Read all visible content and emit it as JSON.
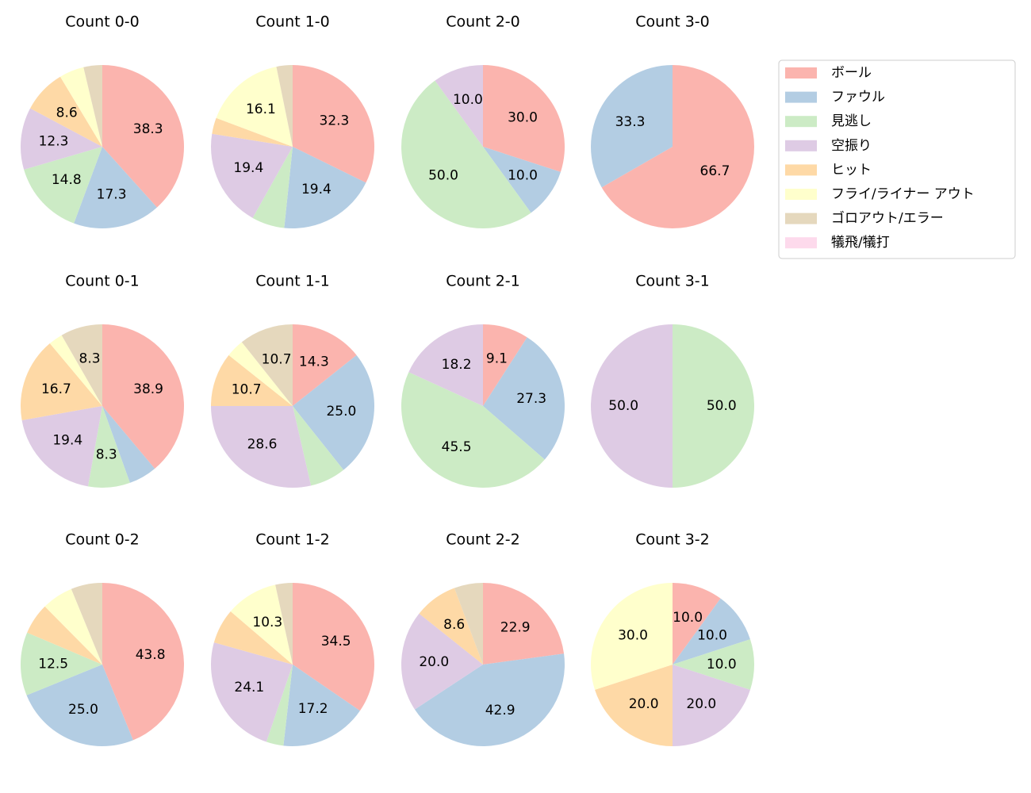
{
  "legend": {
    "entries": [
      {
        "name": "ボール",
        "color": "#fbb4ae"
      },
      {
        "name": "ファウル",
        "color": "#b3cde3"
      },
      {
        "name": "見逃し",
        "color": "#ccebc5"
      },
      {
        "name": "空振り",
        "color": "#decbe4"
      },
      {
        "name": "ヒット",
        "color": "#fed9a6"
      },
      {
        "name": "フライ/ライナー アウト",
        "color": "#ffffcc"
      },
      {
        "name": "ゴロアウト/エラー",
        "color": "#e5d8bd"
      },
      {
        "name": "犠飛/犠打",
        "color": "#fddaec"
      }
    ]
  },
  "chart_data": [
    {
      "type": "pie",
      "title": "Count 0-0",
      "values": [
        38.3,
        17.3,
        14.8,
        12.3,
        8.6,
        4.9,
        3.7,
        null
      ],
      "value_labels": [
        "38.3",
        "17.3",
        "14.8",
        "12.3",
        "8.6",
        null,
        null,
        null
      ]
    },
    {
      "type": "pie",
      "title": "Count 1-0",
      "values": [
        32.3,
        19.4,
        6.5,
        19.4,
        3.2,
        16.1,
        3.2,
        null
      ],
      "value_labels": [
        "32.3",
        "19.4",
        null,
        "19.4",
        null,
        "16.1",
        null,
        null
      ]
    },
    {
      "type": "pie",
      "title": "Count 2-0",
      "values": [
        30.0,
        10.0,
        50.0,
        10.0,
        null,
        null,
        null,
        null
      ],
      "value_labels": [
        "30.0",
        "10.0",
        "50.0",
        "10.0",
        null,
        null,
        null,
        null
      ]
    },
    {
      "type": "pie",
      "title": "Count 3-0",
      "values": [
        66.7,
        33.3,
        null,
        null,
        null,
        null,
        null,
        null
      ],
      "value_labels": [
        "66.7",
        "33.3",
        null,
        null,
        null,
        null,
        null,
        null
      ]
    },
    {
      "type": "pie",
      "title": "Count 0-1",
      "values": [
        38.9,
        5.6,
        8.3,
        19.4,
        16.7,
        2.8,
        8.3,
        null
      ],
      "value_labels": [
        "38.9",
        null,
        "8.3",
        "19.4",
        "16.7",
        null,
        "8.3",
        null
      ]
    },
    {
      "type": "pie",
      "title": "Count 1-1",
      "values": [
        14.3,
        25.0,
        7.1,
        28.6,
        10.7,
        3.6,
        10.7,
        null
      ],
      "value_labels": [
        "14.3",
        "25.0",
        null,
        "28.6",
        "10.7",
        null,
        "10.7",
        null
      ]
    },
    {
      "type": "pie",
      "title": "Count 2-1",
      "values": [
        9.1,
        27.3,
        45.5,
        18.2,
        null,
        null,
        null,
        null
      ],
      "value_labels": [
        "9.1",
        "27.3",
        "45.5",
        "18.2",
        null,
        null,
        null,
        null
      ]
    },
    {
      "type": "pie",
      "title": "Count 3-1",
      "values": [
        null,
        null,
        50.0,
        50.0,
        null,
        null,
        null,
        null
      ],
      "value_labels": [
        null,
        null,
        "50.0",
        "50.0",
        null,
        null,
        null,
        null
      ]
    },
    {
      "type": "pie",
      "title": "Count 0-2",
      "values": [
        43.8,
        25.0,
        12.5,
        null,
        6.2,
        6.2,
        6.2,
        null
      ],
      "value_labels": [
        "43.8",
        "25.0",
        "12.5",
        null,
        null,
        null,
        null,
        null
      ]
    },
    {
      "type": "pie",
      "title": "Count 1-2",
      "values": [
        34.5,
        17.2,
        3.4,
        24.1,
        6.9,
        10.3,
        3.4,
        null
      ],
      "value_labels": [
        "34.5",
        "17.2",
        null,
        "24.1",
        null,
        "10.3",
        null,
        null
      ]
    },
    {
      "type": "pie",
      "title": "Count 2-2",
      "values": [
        22.9,
        42.9,
        null,
        20.0,
        8.6,
        null,
        5.7,
        null
      ],
      "value_labels": [
        "22.9",
        "42.9",
        null,
        "20.0",
        "8.6",
        null,
        null,
        null
      ]
    },
    {
      "type": "pie",
      "title": "Count 3-2",
      "values": [
        10.0,
        10.0,
        10.0,
        20.0,
        20.0,
        30.0,
        null,
        null
      ],
      "value_labels": [
        "10.0",
        "10.0",
        "10.0",
        "20.0",
        "20.0",
        "30.0",
        null,
        null
      ]
    }
  ]
}
